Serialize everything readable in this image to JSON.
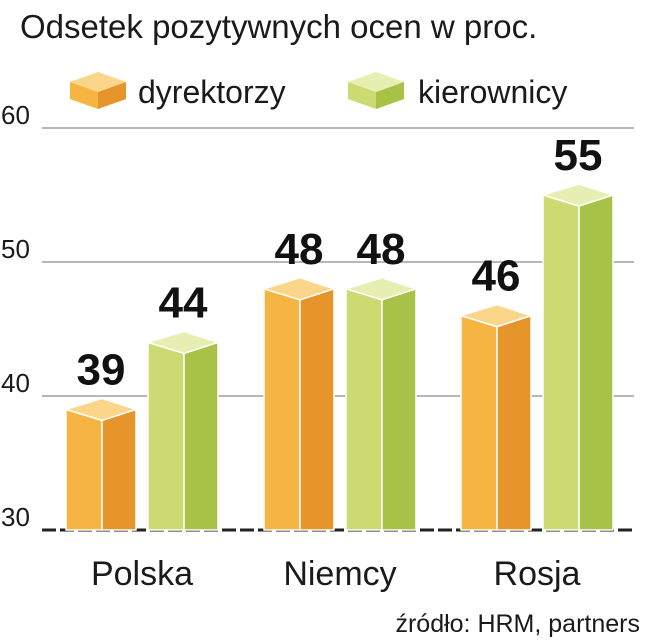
{
  "chart_data": {
    "type": "bar",
    "title": "Odsetek pozytywnych ocen w proc.",
    "source": "źródło: HRM, partners",
    "categories": [
      "Polska",
      "Niemcy",
      "Rosja"
    ],
    "series": [
      {
        "name": "dyrektorzy",
        "values": [
          39,
          48,
          46
        ]
      },
      {
        "name": "kierownicy",
        "values": [
          44,
          48,
          55
        ]
      }
    ],
    "ylim": [
      30,
      60
    ],
    "yticks": [
      30,
      40,
      50,
      60
    ],
    "grid": true,
    "legend_position": "top-left",
    "colors": {
      "dyrektorzy": {
        "front": "#f6b542",
        "side": "#e5952a",
        "top": "#fbd58a"
      },
      "kierownicy": {
        "front": "#cbdb72",
        "side": "#a8c147",
        "top": "#e6efb1"
      }
    }
  }
}
